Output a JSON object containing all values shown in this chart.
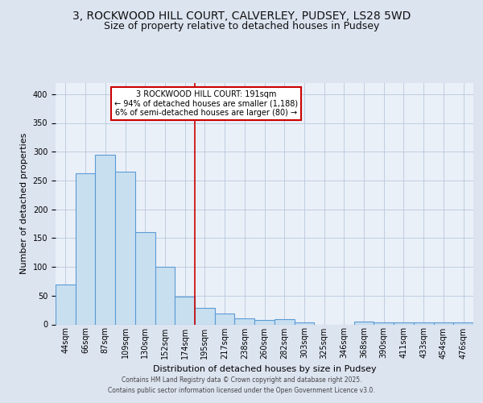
{
  "title_line1": "3, ROCKWOOD HILL COURT, CALVERLEY, PUDSEY, LS28 5WD",
  "title_line2": "Size of property relative to detached houses in Pudsey",
  "xlabel": "Distribution of detached houses by size in Pudsey",
  "ylabel": "Number of detached properties",
  "bin_labels": [
    "44sqm",
    "66sqm",
    "87sqm",
    "109sqm",
    "130sqm",
    "152sqm",
    "174sqm",
    "195sqm",
    "217sqm",
    "238sqm",
    "260sqm",
    "282sqm",
    "303sqm",
    "325sqm",
    "346sqm",
    "368sqm",
    "390sqm",
    "411sqm",
    "433sqm",
    "454sqm",
    "476sqm"
  ],
  "bar_values": [
    70,
    263,
    295,
    265,
    160,
    100,
    48,
    29,
    19,
    10,
    8,
    9,
    3,
    0,
    0,
    5,
    3,
    4,
    3,
    4,
    4
  ],
  "bar_color": "#c8dff0",
  "bar_edge_color": "#5b9bd5",
  "annotation_line1": "3 ROCKWOOD HILL COURT: 191sqm",
  "annotation_line2": "← 94% of detached houses are smaller (1,188)",
  "annotation_line3": "6% of semi-detached houses are larger (80) →",
  "annotation_box_color": "white",
  "annotation_box_edge_color": "#cc0000",
  "vline_color": "#cc0000",
  "ylim": [
    0,
    420
  ],
  "yticks": [
    0,
    50,
    100,
    150,
    200,
    250,
    300,
    350,
    400
  ],
  "background_color": "#dce4f0",
  "plot_bg_color": "#eaf0f8",
  "footer_line1": "Contains HM Land Registry data © Crown copyright and database right 2025.",
  "footer_line2": "Contains public sector information licensed under the Open Government Licence v3.0.",
  "title_fontsize": 10,
  "subtitle_fontsize": 9,
  "axis_label_fontsize": 8,
  "tick_fontsize": 7,
  "annotation_fontsize": 7,
  "footer_fontsize": 5.5
}
